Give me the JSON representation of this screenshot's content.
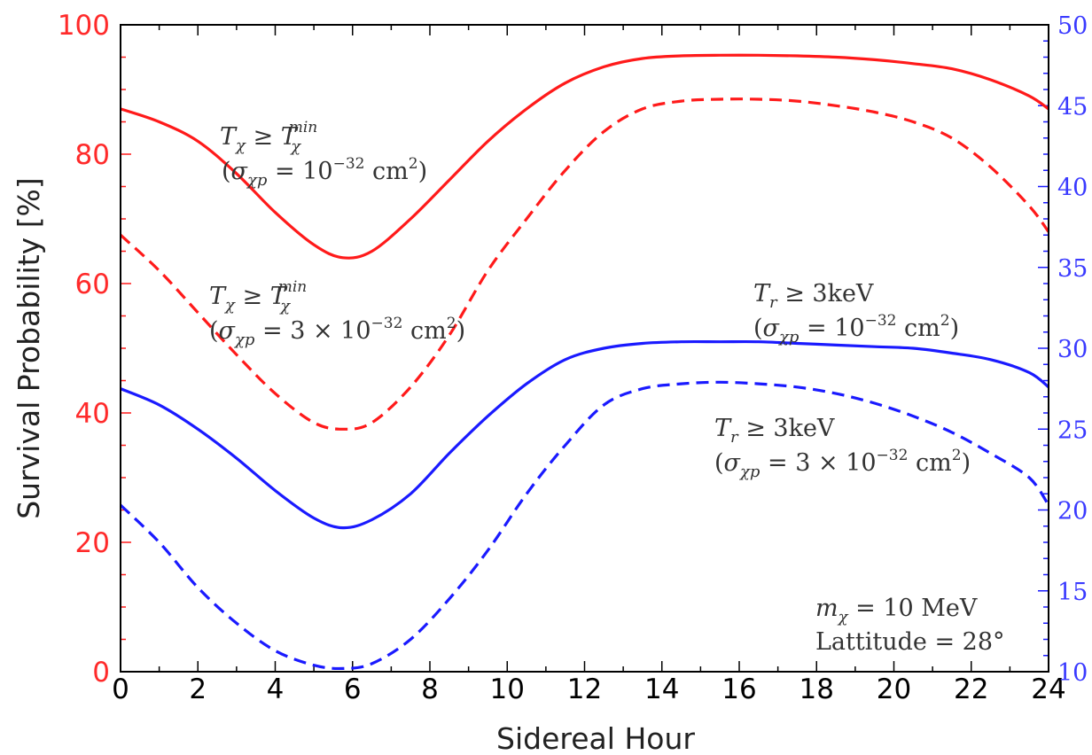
{
  "chart_data": {
    "type": "line",
    "xlabel": "Sidereal Hour",
    "ylabel": "Survival Probability [%]",
    "xlim": [
      0,
      24
    ],
    "ylim_left": [
      0,
      100
    ],
    "ylim_right": [
      10,
      50
    ],
    "xticks": [
      "0",
      "2",
      "4",
      "6",
      "8",
      "10",
      "12",
      "14",
      "16",
      "18",
      "20",
      "22",
      "24"
    ],
    "yticks_left": [
      "0",
      "20",
      "40",
      "60",
      "80",
      "100"
    ],
    "yticks_right": [
      "10",
      "15",
      "20",
      "25",
      "30",
      "35",
      "40",
      "45",
      "50"
    ],
    "grid": false,
    "colors": {
      "red": "#ff1a1a",
      "blue": "#1a1aff"
    },
    "x": [
      0,
      1,
      2,
      3,
      4,
      5,
      5.75,
      6.5,
      7.5,
      8.5,
      9.5,
      10.5,
      11.5,
      12.5,
      13.5,
      14.5,
      15.5,
      16.5,
      17.5,
      18.5,
      19.5,
      20.5,
      21.5,
      22.5,
      23.5,
      24
    ],
    "series": [
      {
        "color": "red",
        "style": "solid",
        "axis": "left",
        "values": [
          87,
          85,
          82,
          77,
          71,
          66,
          64,
          65,
          70,
          76,
          82,
          87,
          91,
          93.5,
          94.8,
          95.2,
          95.3,
          95.3,
          95.2,
          95.0,
          94.6,
          94.0,
          93.2,
          91.5,
          89,
          87
        ]
      },
      {
        "color": "red",
        "style": "dashed",
        "axis": "left",
        "values": [
          67.5,
          62,
          55.5,
          49,
          43,
          38.5,
          37.5,
          38.5,
          44,
          52,
          62,
          70,
          77.5,
          83.5,
          87,
          88.2,
          88.5,
          88.5,
          88.2,
          87.5,
          86.5,
          85,
          82.5,
          78,
          72,
          68
        ]
      },
      {
        "color": "blue",
        "style": "solid",
        "axis": "right",
        "values": [
          27.5,
          26.5,
          25,
          23.2,
          21.2,
          19.5,
          18.9,
          19.4,
          21,
          23.5,
          25.8,
          27.8,
          29.3,
          30.0,
          30.3,
          30.4,
          30.4,
          30.4,
          30.3,
          30.2,
          30.1,
          30.0,
          29.7,
          29.3,
          28.5,
          27.6
        ]
      },
      {
        "color": "blue",
        "style": "dashed",
        "axis": "right",
        "values": [
          20.3,
          18,
          15.2,
          13,
          11.3,
          10.4,
          10.2,
          10.5,
          12,
          14.5,
          17.5,
          21,
          24,
          26.5,
          27.5,
          27.8,
          27.9,
          27.8,
          27.6,
          27.2,
          26.6,
          25.8,
          24.8,
          23.5,
          22,
          20.3
        ]
      }
    ],
    "annotations": [
      {
        "id": "a1",
        "line1": "T_χ ≥ T_χ^min",
        "line2": "(σ_χp = 10^−32 cm^2)"
      },
      {
        "id": "a2",
        "line1": "T_χ ≥ T_χ^min",
        "line2": "(σ_χp = 3 × 10^−32 cm^2)"
      },
      {
        "id": "a3",
        "line1": "T_r ≥ 3keV",
        "line2": "(σ_χp = 10^−32 cm^2)"
      },
      {
        "id": "a4",
        "line1": "T_r ≥ 3keV",
        "line2": "(σ_χp = 3 × 10^−32 cm^2)"
      },
      {
        "id": "a5",
        "line1": "m_χ = 10 MeV",
        "line2": "Lattitude = 28°"
      }
    ]
  }
}
